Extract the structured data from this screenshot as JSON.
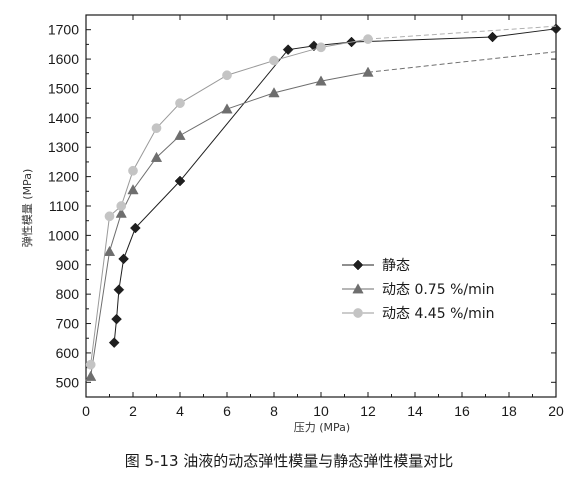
{
  "figure": {
    "caption": "图 5-13 油液的动态弹性模量与静态弹性模量对比"
  },
  "chart_data": {
    "type": "line",
    "xlabel": "压力 (MPa)",
    "ylabel": "弹性模量 (MPa)",
    "xlim": [
      0,
      20
    ],
    "ylim": [
      450,
      1750
    ],
    "xticks": [
      0,
      2,
      4,
      6,
      8,
      10,
      12,
      14,
      16,
      18,
      20
    ],
    "yticks": [
      500,
      600,
      700,
      800,
      900,
      1000,
      1100,
      1200,
      1300,
      1400,
      1500,
      1600,
      1700
    ],
    "grid": false,
    "legend_position": "center-right",
    "series": [
      {
        "name": "静态",
        "marker": "diamond",
        "color": "#1f1f1f",
        "x": [
          1.2,
          1.3,
          1.4,
          1.6,
          2.1,
          4.0,
          8.6,
          9.7,
          11.3,
          17.3,
          20.0
        ],
        "y": [
          635,
          715,
          815,
          920,
          1025,
          1185,
          1632,
          1645,
          1658,
          1675,
          1703
        ]
      },
      {
        "name": "动态 0.75 %/min",
        "marker": "triangle",
        "color": "#6e6e6e",
        "x": [
          0.2,
          1.0,
          1.5,
          2.0,
          3.0,
          4.0,
          6.0,
          8.0,
          10.0,
          12.0,
          20.0
        ],
        "y": [
          520,
          945,
          1075,
          1155,
          1265,
          1340,
          1430,
          1485,
          1525,
          1555,
          1625
        ]
      },
      {
        "name": "动态 4.45 %/min",
        "marker": "circle",
        "color": "#c4c4c4",
        "x": [
          0.2,
          1.0,
          1.5,
          2.0,
          3.0,
          4.0,
          6.0,
          8.0,
          10.0,
          12.0,
          20.0
        ],
        "y": [
          560,
          1065,
          1100,
          1220,
          1365,
          1450,
          1545,
          1595,
          1640,
          1668,
          1712
        ]
      }
    ]
  }
}
